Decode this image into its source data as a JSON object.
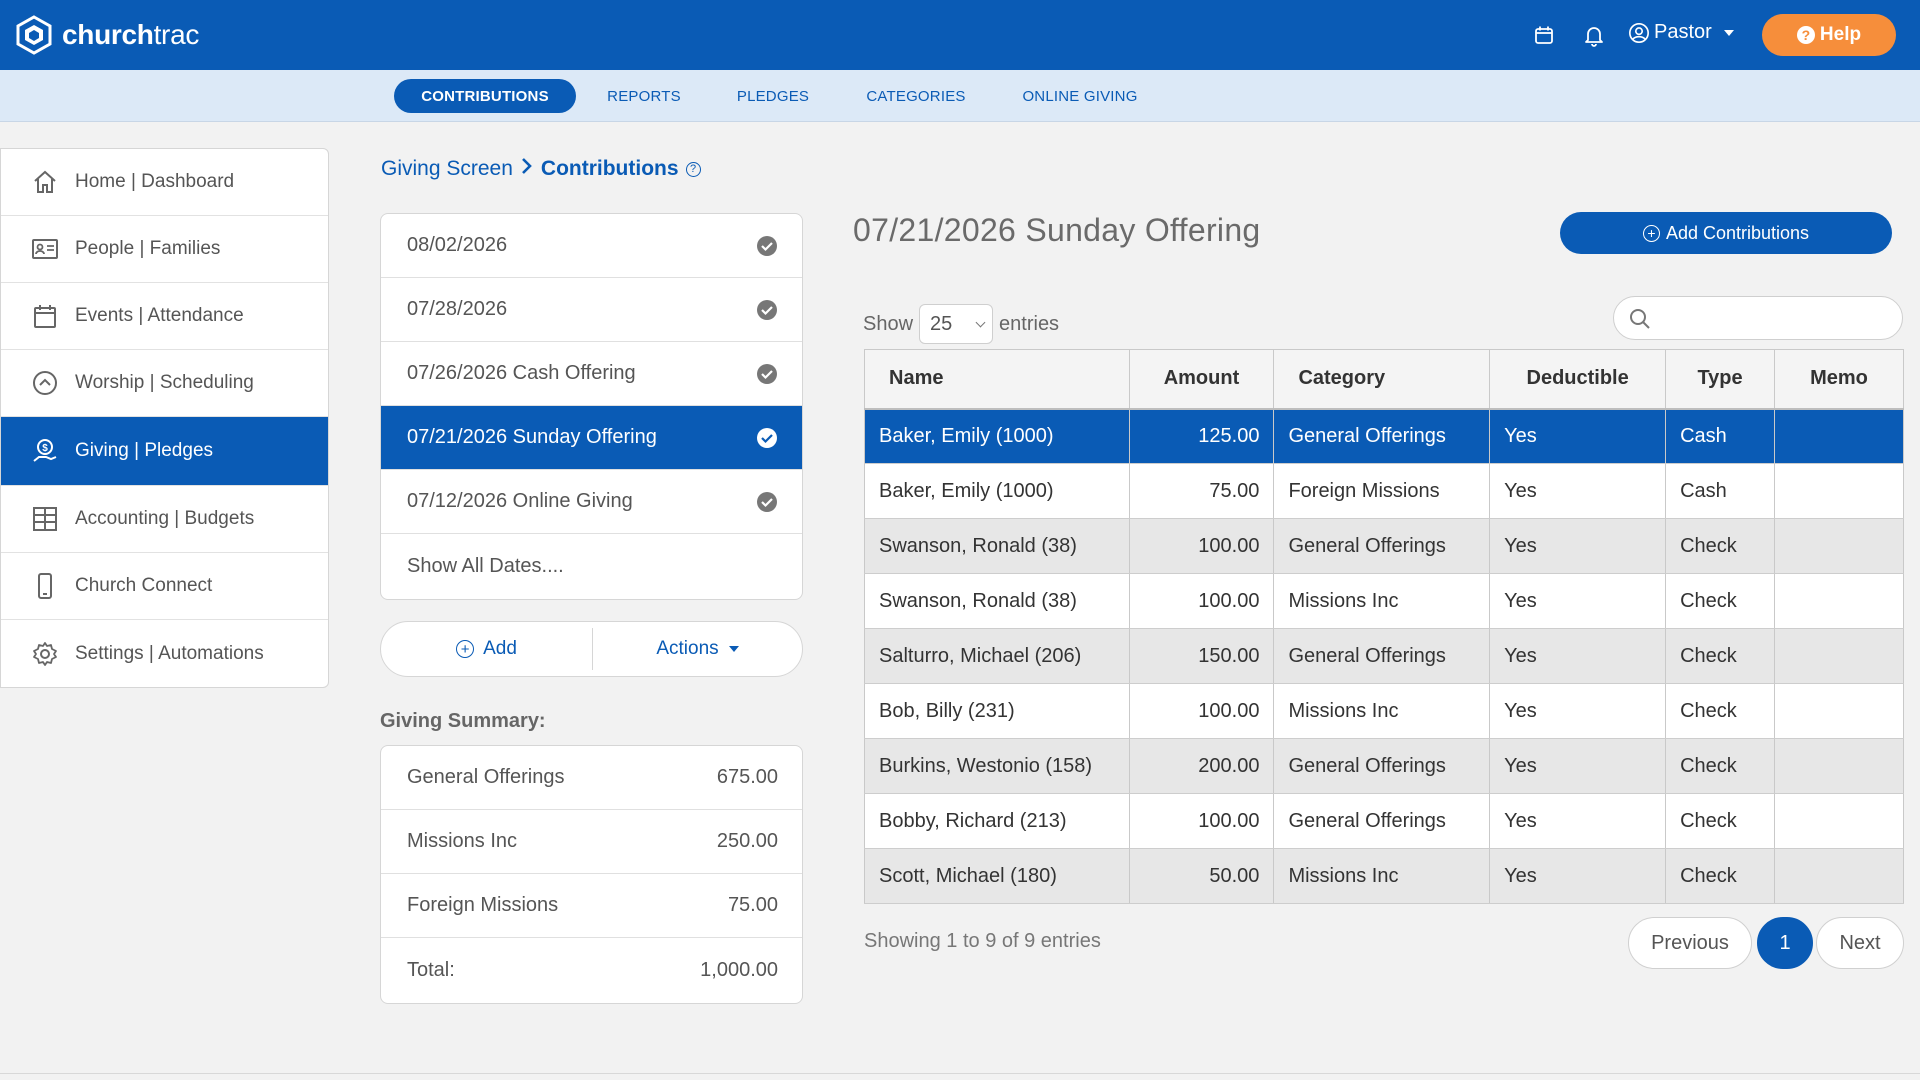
{
  "app": {
    "logo_text_bold": "church",
    "logo_text_light": "trac",
    "user_label": "Pastor",
    "help_label": "Help",
    "help_glyph": "?",
    "accent_color": "#0a5bb5",
    "help_color": "#f68e3b"
  },
  "subnav": {
    "tabs": [
      {
        "label": "CONTRIBUTIONS",
        "active": true
      },
      {
        "label": "REPORTS"
      },
      {
        "label": "PLEDGES"
      },
      {
        "label": "CATEGORIES"
      },
      {
        "label": "ONLINE GIVING"
      }
    ]
  },
  "sidebar": {
    "items": [
      {
        "label": "Home | Dashboard",
        "icon": "home-icon"
      },
      {
        "label": "People | Families",
        "icon": "contact-card-icon"
      },
      {
        "label": "Events | Attendance",
        "icon": "calendar-icon"
      },
      {
        "label": "Worship | Scheduling",
        "icon": "chevron-up-circle-icon"
      },
      {
        "label": "Giving | Pledges",
        "icon": "giving-hand-icon",
        "active": true
      },
      {
        "label": "Accounting | Budgets",
        "icon": "ledger-grid-icon"
      },
      {
        "label": "Church Connect",
        "icon": "mobile-phone-icon"
      },
      {
        "label": "Settings | Automations",
        "icon": "gear-icon"
      }
    ]
  },
  "breadcrumb": {
    "parent": "Giving Screen",
    "current": "Contributions",
    "info_glyph": "?"
  },
  "batches": {
    "items": [
      {
        "label": "08/02/2026"
      },
      {
        "label": "07/28/2026"
      },
      {
        "label": "07/26/2026 Cash Offering"
      },
      {
        "label": "07/21/2026 Sunday Offering",
        "active": true
      },
      {
        "label": "07/12/2026 Online Giving"
      }
    ],
    "show_all": "Show All Dates....",
    "add_label": "Add",
    "actions_label": "Actions"
  },
  "summary": {
    "label": "Giving Summary:",
    "rows": [
      {
        "name": "General Offerings",
        "value": "675.00"
      },
      {
        "name": "Missions Inc",
        "value": "250.00"
      },
      {
        "name": "Foreign Missions",
        "value": "75.00"
      },
      {
        "name": "Total:",
        "value": "1,000.00"
      }
    ]
  },
  "main": {
    "title": "07/21/2026 Sunday Offering",
    "add_contributions": "Add Contributions",
    "show_label": "Show",
    "entries_value": "25",
    "entries_label": "entries",
    "search_placeholder": ""
  },
  "table": {
    "headers": [
      "Name",
      "Amount",
      "Category",
      "Deductible",
      "Type",
      "Memo"
    ],
    "rows": [
      {
        "name": "Baker, Emily (1000)",
        "amount": "125.00",
        "category": "General Offerings",
        "deductible": "Yes",
        "type": "Cash",
        "memo": "",
        "selected": true
      },
      {
        "name": "Baker, Emily (1000)",
        "amount": "75.00",
        "category": "Foreign Missions",
        "deductible": "Yes",
        "type": "Cash",
        "memo": ""
      },
      {
        "name": "Swanson, Ronald (38)",
        "amount": "100.00",
        "category": "General Offerings",
        "deductible": "Yes",
        "type": "Check",
        "memo": ""
      },
      {
        "name": "Swanson, Ronald (38)",
        "amount": "100.00",
        "category": "Missions Inc",
        "deductible": "Yes",
        "type": "Check",
        "memo": ""
      },
      {
        "name": "Salturro, Michael (206)",
        "amount": "150.00",
        "category": "General Offerings",
        "deductible": "Yes",
        "type": "Check",
        "memo": ""
      },
      {
        "name": "Bob, Billy (231)",
        "amount": "100.00",
        "category": "Missions Inc",
        "deductible": "Yes",
        "type": "Check",
        "memo": ""
      },
      {
        "name": "Burkins, Westonio (158)",
        "amount": "200.00",
        "category": "General Offerings",
        "deductible": "Yes",
        "type": "Check",
        "memo": ""
      },
      {
        "name": "Bobby, Richard (213)",
        "amount": "100.00",
        "category": "General Offerings",
        "deductible": "Yes",
        "type": "Check",
        "memo": ""
      },
      {
        "name": "Scott, Michael (180)",
        "amount": "50.00",
        "category": "Missions Inc",
        "deductible": "Yes",
        "type": "Check",
        "memo": ""
      }
    ],
    "showing_text": "Showing 1 to 9 of 9 entries",
    "pager": {
      "previous": "Previous",
      "page": "1",
      "next": "Next"
    }
  }
}
